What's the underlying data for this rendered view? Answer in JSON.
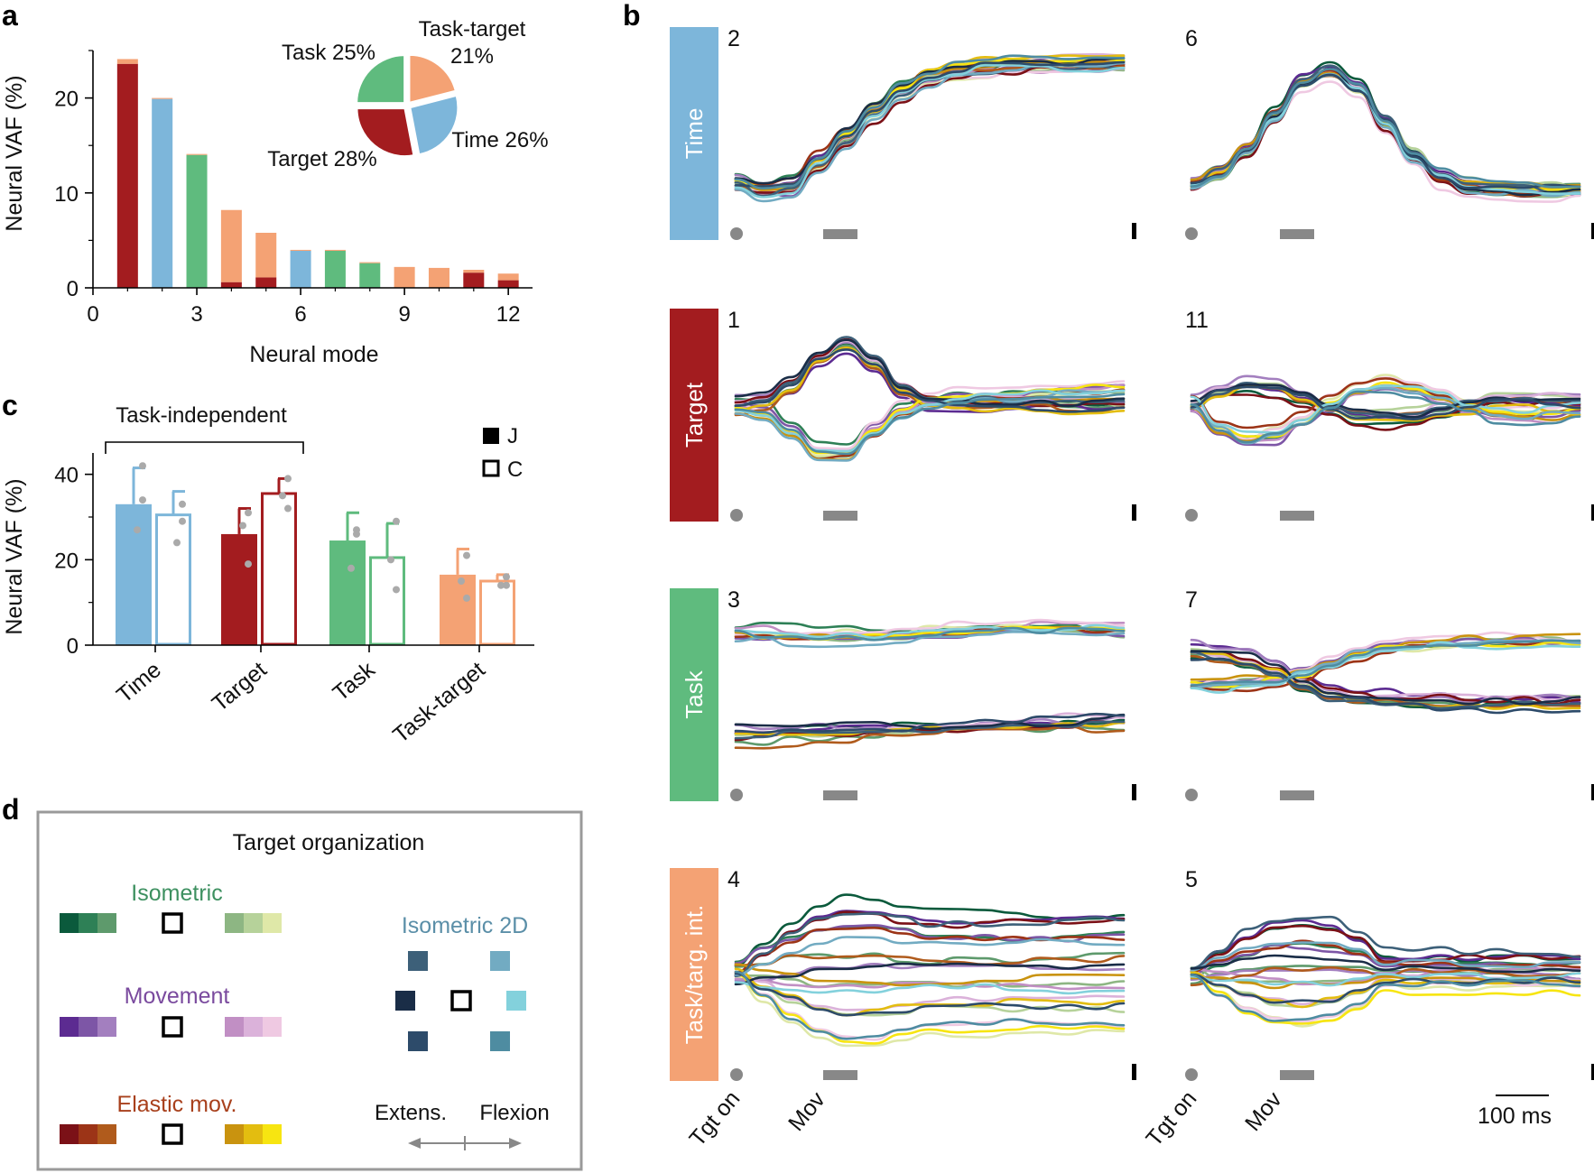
{
  "panels": {
    "a": "a",
    "b": "b",
    "c": "c",
    "d": "d"
  },
  "chart_data": [
    {
      "id": "a",
      "type": "bar",
      "stacked": true,
      "xlabel": "Neural mode",
      "ylabel": "Neural VAF (%)",
      "xlim": [
        0,
        12.7
      ],
      "ylim": [
        0,
        25
      ],
      "xticks": [
        "0",
        "3",
        "6",
        "9",
        "12"
      ],
      "yticks": [
        "0",
        "10",
        "20"
      ],
      "modes": [
        1,
        2,
        3,
        4,
        5,
        6,
        7,
        8,
        9,
        10,
        11,
        12
      ],
      "series": [
        {
          "name": "Target",
          "color": "#a31c1f",
          "values": [
            23.6,
            0,
            0,
            0.6,
            1.1,
            0,
            0,
            0,
            0,
            0,
            1.6,
            0.8
          ]
        },
        {
          "name": "Time",
          "color": "#7db6da",
          "values": [
            0,
            19.9,
            0,
            0,
            0,
            3.9,
            0,
            0,
            0,
            0,
            0,
            0
          ]
        },
        {
          "name": "Task",
          "color": "#5fbb7e",
          "values": [
            0,
            0,
            14.0,
            0,
            0,
            0,
            3.9,
            2.6,
            0,
            0,
            0,
            0
          ]
        },
        {
          "name": "Task-target",
          "color": "#f4a274",
          "values": [
            0.5,
            0.1,
            0.1,
            7.6,
            4.7,
            0.1,
            0.1,
            0.1,
            2.2,
            2.1,
            0.3,
            0.7
          ]
        }
      ],
      "inset_pie": {
        "labels": [
          "Task-target\n21%",
          "Time 26%",
          "Target 28%",
          "Task 25%"
        ],
        "values": [
          21,
          26,
          28,
          25
        ],
        "colors": [
          "#f4a274",
          "#7db6da",
          "#a31c1f",
          "#5fbb7e"
        ]
      }
    },
    {
      "id": "c",
      "type": "bar",
      "ylabel": "Neural VAF (%)",
      "ylim": [
        0,
        45
      ],
      "yticks": [
        "0",
        "20",
        "40"
      ],
      "categories": [
        "Time",
        "Target",
        "Task",
        "Task-target"
      ],
      "colors": [
        "#7db6da",
        "#a31c1f",
        "#5fbb7e",
        "#f4a274"
      ],
      "series": [
        {
          "name": "J",
          "style": "filled",
          "values": [
            33,
            26,
            24.5,
            16.5
          ],
          "err": [
            8.5,
            6,
            6.5,
            6
          ]
        },
        {
          "name": "C",
          "style": "open",
          "values": [
            30.5,
            35.5,
            20.5,
            15
          ],
          "err": [
            5.5,
            3.5,
            8,
            1.5
          ]
        }
      ],
      "dots": [
        [
          [
            42,
            27,
            34
          ],
          [
            33,
            24,
            29
          ]
        ],
        [
          [
            31,
            28,
            19
          ],
          [
            39,
            35,
            32
          ]
        ],
        [
          [
            27,
            18,
            26
          ],
          [
            29,
            20,
            13
          ]
        ],
        [
          [
            21,
            15,
            11
          ],
          [
            16,
            14,
            14
          ]
        ]
      ],
      "annotation": "Task-independent",
      "legend": [
        "J",
        "C"
      ]
    },
    {
      "id": "b",
      "type": "line",
      "row_labels": [
        "Time",
        "Target",
        "Task",
        "Task/targ. int."
      ],
      "row_colors": [
        "#7db6da",
        "#a31c1f",
        "#5fbb7e",
        "#f4a274"
      ],
      "mode_numbers": [
        [
          "2",
          "6"
        ],
        [
          "1",
          "11"
        ],
        [
          "3",
          "7"
        ],
        [
          "4",
          "5"
        ]
      ],
      "x_events": [
        "Tgt on",
        "Mov"
      ],
      "scalebar": "100 ms",
      "trace_colors": [
        "#0b5a3c",
        "#2e8056",
        "#5e9a6c",
        "#8db683",
        "#b6d29a",
        "#dfe8a8",
        "#5c2b91",
        "#7d56a6",
        "#a37fbf",
        "#c18fc4",
        "#dbb2da",
        "#efc9e2",
        "#7b1117",
        "#9c3417",
        "#b05b1c",
        "#c9930f",
        "#e3bd10",
        "#f7e511",
        "#3d6079",
        "#72abc2",
        "#1a2d47",
        "#83d1dc",
        "#2d4b6a",
        "#4e8ca1"
      ]
    }
  ],
  "panel_d": {
    "title": "Target organization",
    "isometric": {
      "label": "Isometric",
      "color": "#3d9060",
      "left": [
        "#0b5a3c",
        "#2e8056",
        "#5e9a6c"
      ],
      "right": [
        "#8db683",
        "#b6d29a",
        "#dfe8a8"
      ]
    },
    "movement": {
      "label": "Movement",
      "color": "#7a4a9e",
      "left": [
        "#5c2b91",
        "#7d56a6",
        "#a37fbf"
      ],
      "right": [
        "#c18fc4",
        "#dbb2da",
        "#efc9e2"
      ]
    },
    "elastic": {
      "label": "Elastic mov.",
      "color": "#a8401c",
      "left": [
        "#7b1117",
        "#9c3417",
        "#b05b1c"
      ],
      "right": [
        "#c9930f",
        "#e3bd10",
        "#f7e511"
      ]
    },
    "iso2d": {
      "label": "Isometric 2D",
      "color": "#5b8fa8",
      "squares": [
        "#3d6079",
        "#72abc2",
        "#1a2d47",
        "#83d1dc",
        "#2d4b6a",
        "#4e8ca1"
      ]
    },
    "arrow": {
      "left": "Extens.",
      "right": "Flexion"
    }
  }
}
